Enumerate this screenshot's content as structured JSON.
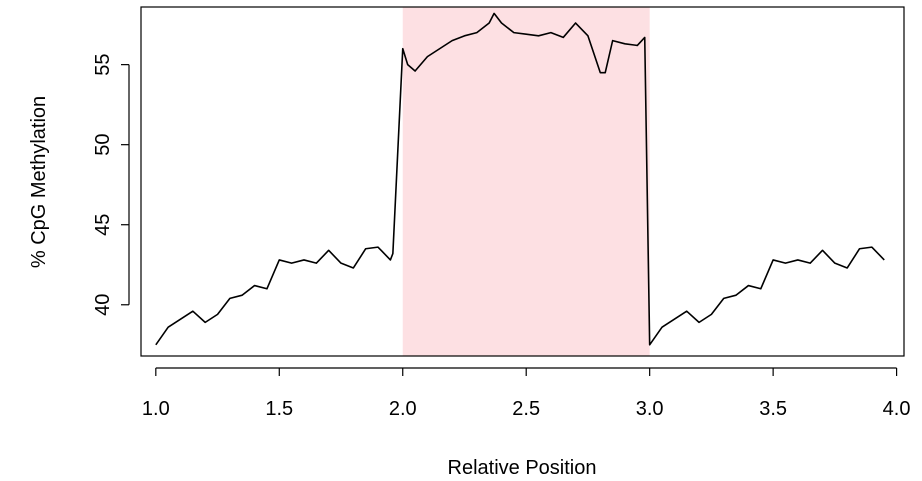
{
  "chart_data": {
    "type": "line",
    "title": "",
    "xlabel": "Relative Position",
    "ylabel": "% CpG Methylation",
    "xlim": [
      0.94,
      4.03
    ],
    "ylim": [
      36.8,
      58.6
    ],
    "x_ticks": [
      1.0,
      1.5,
      2.0,
      2.5,
      3.0,
      3.5,
      4.0
    ],
    "x_tick_labels": [
      "1.0",
      "1.5",
      "2.0",
      "2.5",
      "3.0",
      "3.5",
      "4.0"
    ],
    "y_ticks": [
      40,
      45,
      50,
      55
    ],
    "y_tick_labels": [
      "40",
      "45",
      "50",
      "55"
    ],
    "grid": false,
    "legend": "none",
    "highlight_region": {
      "x": [
        2.0,
        3.0
      ],
      "color": "#fde0e3"
    },
    "series": [
      {
        "color": "#000000",
        "x": [
          1.0,
          1.05,
          1.1,
          1.15,
          1.2,
          1.25,
          1.3,
          1.35,
          1.4,
          1.45,
          1.5,
          1.55,
          1.6,
          1.65,
          1.7,
          1.75,
          1.8,
          1.85,
          1.9,
          1.95,
          1.96,
          2.0,
          2.02,
          2.05,
          2.1,
          2.15,
          2.2,
          2.25,
          2.3,
          2.35,
          2.37,
          2.4,
          2.45,
          2.5,
          2.55,
          2.6,
          2.65,
          2.7,
          2.75,
          2.8,
          2.82,
          2.85,
          2.9,
          2.95,
          2.98,
          3.0,
          3.05,
          3.1,
          3.15,
          3.2,
          3.25,
          3.3,
          3.35,
          3.4,
          3.45,
          3.5,
          3.55,
          3.6,
          3.65,
          3.7,
          3.75,
          3.8,
          3.85,
          3.9,
          3.95
        ],
        "y": [
          37.5,
          38.6,
          39.1,
          39.6,
          38.9,
          39.4,
          40.4,
          40.6,
          41.2,
          41.0,
          42.8,
          42.6,
          42.8,
          42.6,
          43.4,
          42.6,
          42.3,
          43.5,
          43.6,
          42.8,
          43.2,
          56.0,
          55.0,
          54.6,
          55.5,
          56.0,
          56.5,
          56.8,
          57.0,
          57.6,
          58.2,
          57.6,
          57.0,
          56.9,
          56.8,
          57.0,
          56.7,
          57.6,
          56.8,
          54.5,
          54.5,
          56.5,
          56.3,
          56.2,
          56.7,
          37.5,
          38.6,
          39.1,
          39.6,
          38.9,
          39.4,
          40.4,
          40.6,
          41.2,
          41.0,
          42.8,
          42.6,
          42.8,
          42.6,
          43.4,
          42.6,
          42.3,
          43.5,
          43.6,
          42.8
        ]
      }
    ]
  }
}
